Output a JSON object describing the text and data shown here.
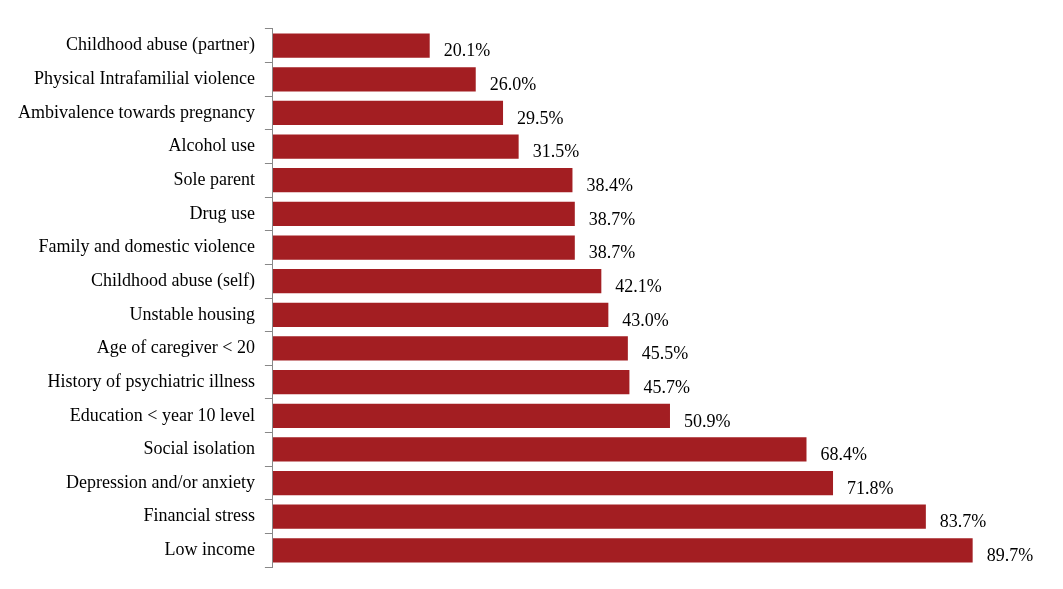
{
  "chart_data": {
    "type": "bar",
    "orientation": "horizontal",
    "categories": [
      "Childhood abuse (partner)",
      "Physical Intrafamilial violence",
      "Ambivalence towards pregnancy",
      "Alcohol use",
      "Sole parent",
      "Drug use",
      "Family and domestic violence",
      "Childhood abuse (self)",
      "Unstable housing",
      "Age of caregiver < 20",
      "History of psychiatric illness",
      "Education < year 10 level",
      "Social isolation",
      "Depression and/or anxiety",
      "Financial stress",
      "Low income"
    ],
    "values": [
      20.1,
      26.0,
      29.5,
      31.5,
      38.4,
      38.7,
      38.7,
      42.1,
      43.0,
      45.5,
      45.7,
      50.9,
      68.4,
      71.8,
      83.7,
      89.7
    ],
    "value_labels": [
      "20.1%",
      "26.0%",
      "29.5%",
      "31.5%",
      "38.4%",
      "38.7%",
      "38.7%",
      "42.1%",
      "43.0%",
      "45.5%",
      "45.7%",
      "50.9%",
      "68.4%",
      "71.8%",
      "83.7%",
      "89.7%"
    ],
    "color": "#a31e22",
    "grid": false,
    "legend": false
  }
}
